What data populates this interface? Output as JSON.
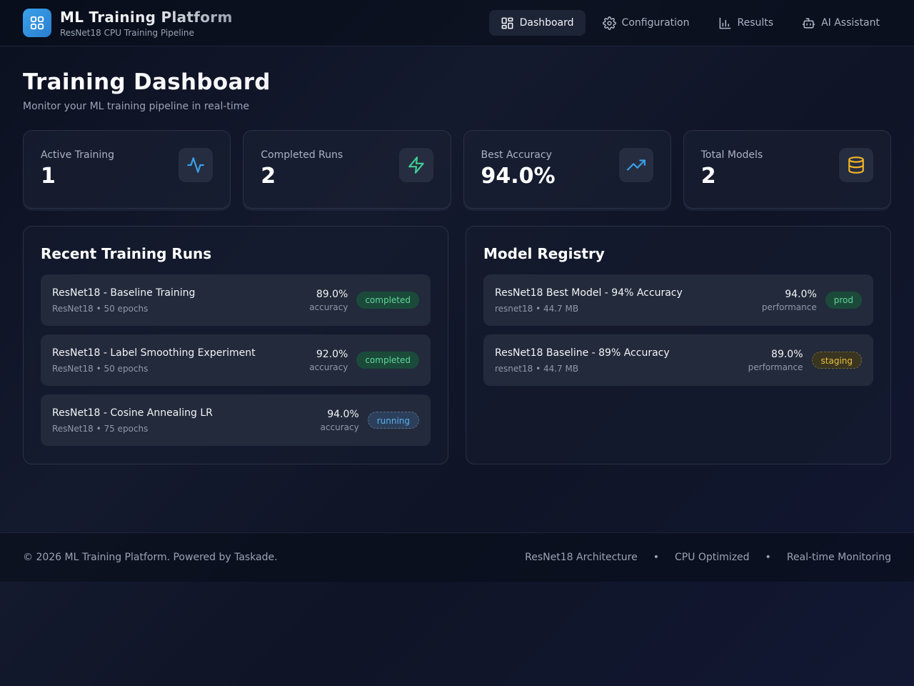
{
  "header": {
    "title": "ML Training Platform",
    "subtitle": "ResNet18 CPU Training Pipeline",
    "nav": [
      {
        "label": "Dashboard",
        "icon": "dashboard-icon"
      },
      {
        "label": "Configuration",
        "icon": "gear-icon"
      },
      {
        "label": "Results",
        "icon": "bar-chart-icon"
      },
      {
        "label": "AI Assistant",
        "icon": "bot-icon"
      }
    ]
  },
  "main": {
    "title": "Training Dashboard",
    "subtitle": "Monitor your ML training pipeline in real-time",
    "stats": [
      {
        "label": "Active Training",
        "value": "1",
        "icon": "activity-icon",
        "color": "#3aa0e8"
      },
      {
        "label": "Completed Runs",
        "value": "2",
        "icon": "zap-icon",
        "color": "#3ecf8e"
      },
      {
        "label": "Best Accuracy",
        "value": "94.0%",
        "icon": "trending-up-icon",
        "color": "#3aa0e8"
      },
      {
        "label": "Total Models",
        "value": "2",
        "icon": "database-icon",
        "color": "#f0b429"
      }
    ],
    "runs": {
      "title": "Recent Training Runs",
      "items": [
        {
          "name": "ResNet18 - Baseline Training",
          "meta": "ResNet18 • 50 epochs",
          "metric": "89.0%",
          "metric_label": "accuracy",
          "status": "completed"
        },
        {
          "name": "ResNet18 - Label Smoothing Experiment",
          "meta": "ResNet18 • 50 epochs",
          "metric": "92.0%",
          "metric_label": "accuracy",
          "status": "completed"
        },
        {
          "name": "ResNet18 - Cosine Annealing LR",
          "meta": "ResNet18 • 75 epochs",
          "metric": "94.0%",
          "metric_label": "accuracy",
          "status": "running"
        }
      ]
    },
    "registry": {
      "title": "Model Registry",
      "items": [
        {
          "name": "ResNet18 Best Model - 94% Accuracy",
          "meta": "resnet18 • 44.7 MB",
          "metric": "94.0%",
          "metric_label": "performance",
          "status": "prod"
        },
        {
          "name": "ResNet18 Baseline - 89% Accuracy",
          "meta": "resnet18 • 44.7 MB",
          "metric": "89.0%",
          "metric_label": "performance",
          "status": "staging"
        }
      ]
    }
  },
  "footer": {
    "copyright": "© 2026 ML Training Platform. Powered by Taskade.",
    "links": [
      "ResNet18 Architecture",
      "CPU Optimized",
      "Real-time Monitoring"
    ],
    "separator": "•"
  }
}
